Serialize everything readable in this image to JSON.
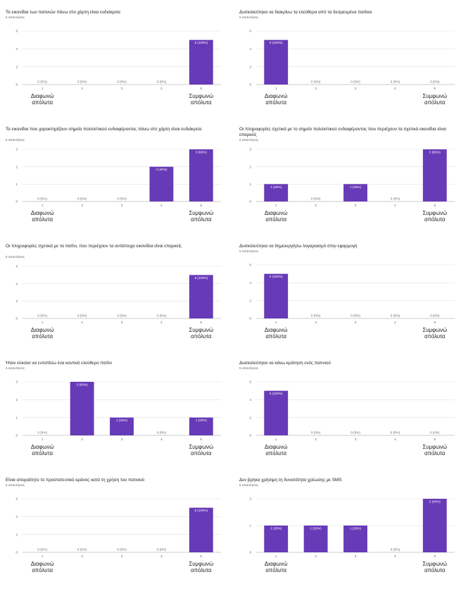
{
  "common": {
    "anchor_low": [
      "Διαφωνώ",
      "απόλυτα"
    ],
    "anchor_high": [
      "Συμφωνώ",
      "απόλυτα"
    ],
    "bar_color": "#673ab7"
  },
  "chart_data": [
    {
      "type": "bar",
      "title": "Τα εικονίδια των πατινιών πάνω στο χάρτη είναι ευδιάκριτα",
      "subtitle": "5 απαντήσεις",
      "categories": [
        "1",
        "2",
        "3",
        "4",
        "5"
      ],
      "values": [
        0,
        0,
        0,
        0,
        5
      ],
      "value_labels": [
        "0 (0%)",
        "0 (0%)",
        "0 (0%)",
        "0 (0%)",
        "5 (100%)"
      ],
      "yticks": [
        0,
        2,
        4,
        6
      ],
      "ylim": [
        0,
        6
      ]
    },
    {
      "type": "bar",
      "title": "Δυσκολεύτηκα να διακρίνω τα ελεύθερα από τα δεσμευμένα πατίνια",
      "subtitle": "5 απαντήσεις",
      "categories": [
        "1",
        "2",
        "3",
        "4",
        "5"
      ],
      "values": [
        5,
        0,
        0,
        0,
        0
      ],
      "value_labels": [
        "5 (100%)",
        "0 (0%)",
        "0 (0%)",
        "0 (0%)",
        "0 (0%)"
      ],
      "yticks": [
        0,
        2,
        4,
        6
      ],
      "ylim": [
        0,
        6
      ]
    },
    {
      "type": "bar",
      "title": "Τα εικονίδια που χαρακτηρίζουν σημεία πολιτιστικού ενδιαφέροντος πάνω στο χάρτη είναι ευδιάκριτα",
      "subtitle": "5 απαντήσεις",
      "categories": [
        "1",
        "2",
        "3",
        "4",
        "5"
      ],
      "values": [
        0,
        0,
        0,
        2,
        3
      ],
      "value_labels": [
        "0 (0%)",
        "0 (0%)",
        "0 (0%)",
        "2 (40%)",
        "3 (60%)"
      ],
      "yticks": [
        0,
        1,
        2,
        3
      ],
      "ylim": [
        0,
        3
      ]
    },
    {
      "type": "bar",
      "title": "Οι πληροφορίες σχετικά με το σημείο πολιτιστικού ενδιαφέροντος που περιέχουν τα σχετικά εικονίδια είναι επαρκείς",
      "subtitle": "5 απαντήσεις",
      "categories": [
        "1",
        "2",
        "3",
        "4",
        "5"
      ],
      "values": [
        1,
        0,
        1,
        0,
        3
      ],
      "value_labels": [
        "1 (20%)",
        "0 (0%)",
        "1 (20%)",
        "0 (0%)",
        "3 (60%)"
      ],
      "yticks": [
        0,
        1,
        2,
        3
      ],
      "ylim": [
        0,
        3
      ]
    },
    {
      "type": "bar",
      "title": "Οι πληροφορίες σχετικά με τα πατίνι, που περιέχουν τα αντίστοιχα εικονίδια είναι επαρκείς",
      "subtitle": "5 απαντήσεις",
      "categories": [
        "1",
        "2",
        "3",
        "4",
        "5"
      ],
      "values": [
        0,
        0,
        0,
        0,
        5
      ],
      "value_labels": [
        "0 (0%)",
        "0 (0%)",
        "0 (0%)",
        "0 (0%)",
        "5 (100%)"
      ],
      "yticks": [
        0,
        2,
        4,
        6
      ],
      "ylim": [
        0,
        6
      ]
    },
    {
      "type": "bar",
      "title": "Δυσκολεύτηκα να δημιουργήσω λογαριασμό στην εφαρμογή",
      "subtitle": "5 απαντήσεις",
      "categories": [
        "1",
        "2",
        "3",
        "4",
        "5"
      ],
      "values": [
        5,
        0,
        0,
        0,
        0
      ],
      "value_labels": [
        "5 (100%)",
        "0 (0%)",
        "0 (0%)",
        "0 (0%)",
        "0 (0%)"
      ],
      "yticks": [
        0,
        2,
        4,
        6
      ],
      "ylim": [
        0,
        6
      ]
    },
    {
      "type": "bar",
      "title": "Ήταν εύκολο να εντοπίσω ένα κοντινό ελεύθερο πατίνι",
      "subtitle": "5 απαντήσεις",
      "categories": [
        "1",
        "2",
        "3",
        "4",
        "5"
      ],
      "values": [
        0,
        3,
        1,
        0,
        1
      ],
      "value_labels": [
        "0 (0%)",
        "3 (60%)",
        "1 (20%)",
        "0 (0%)",
        "1 (20%)"
      ],
      "yticks": [
        0,
        1,
        2,
        3
      ],
      "ylim": [
        0,
        3
      ]
    },
    {
      "type": "bar",
      "title": "Δυσκολεύτηκα να κάνω κράτηση ενός πατινιού",
      "subtitle": "5 απαντήσεις",
      "categories": [
        "1",
        "2",
        "3",
        "4",
        "5"
      ],
      "values": [
        5,
        0,
        0,
        0,
        0
      ],
      "value_labels": [
        "5 (100%)",
        "0 (0%)",
        "0 (0%)",
        "0 (0%)",
        "0 (0%)"
      ],
      "yticks": [
        0,
        2,
        4,
        6
      ],
      "ylim": [
        0,
        6
      ]
    },
    {
      "type": "bar",
      "title": "Είναι απαραίτητο το προστατευτικό κράνος κατά τη χρήση του πατινιού",
      "subtitle": "5 απαντήσεις",
      "categories": [
        "1",
        "2",
        "3",
        "4",
        "5"
      ],
      "values": [
        0,
        0,
        0,
        0,
        5
      ],
      "value_labels": [
        "0 (0%)",
        "0 (0%)",
        "0 (0%)",
        "0 (0%)",
        "5 (100%)"
      ],
      "yticks": [
        0,
        2,
        4,
        6
      ],
      "ylim": [
        0,
        6
      ]
    },
    {
      "type": "bar",
      "title": "Δεν βρήκα χρήσιμη τη δυνατότητα χρέωσης με SMS",
      "subtitle": "5 απαντήσεις",
      "categories": [
        "1",
        "2",
        "3",
        "4",
        "5"
      ],
      "values": [
        1,
        1,
        1,
        0,
        2
      ],
      "value_labels": [
        "1 (20%)",
        "1 (20%)",
        "1 (20%)",
        "0 (0%)",
        "2 (40%)"
      ],
      "yticks": [
        0,
        1,
        2
      ],
      "ylim": [
        0,
        2
      ]
    }
  ]
}
